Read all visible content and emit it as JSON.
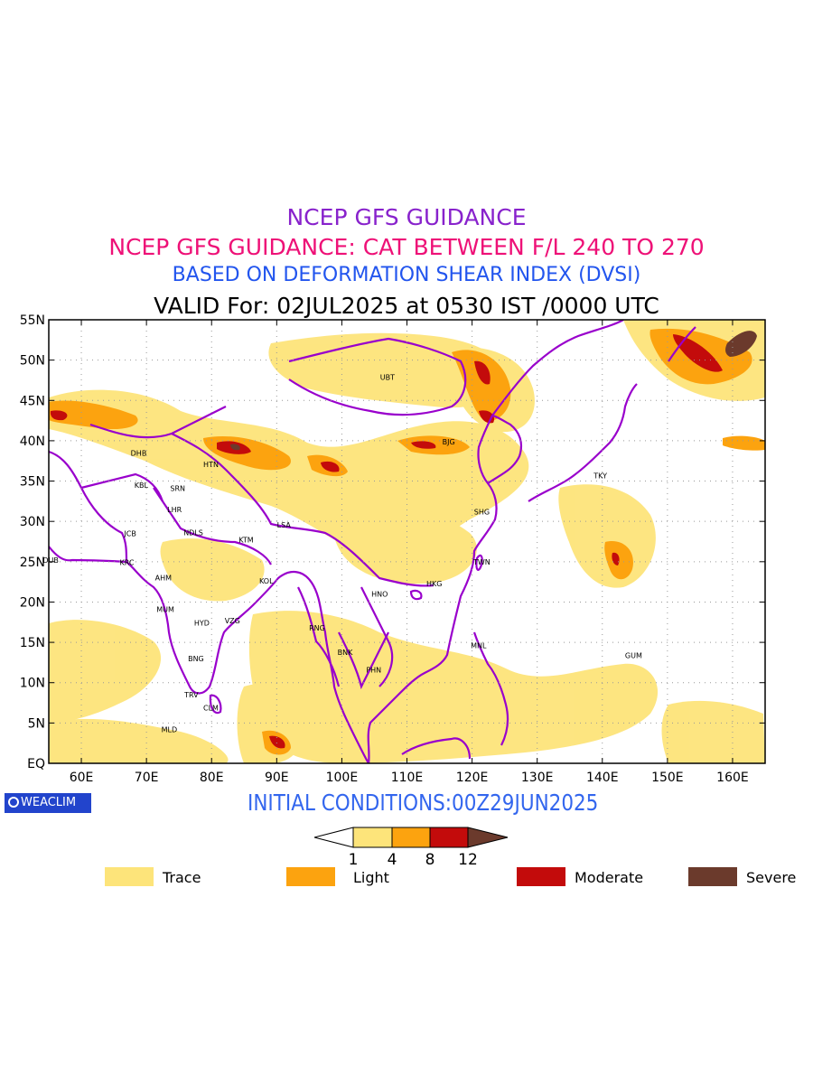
{
  "titles": {
    "line1": "NCEP GFS GUIDANCE",
    "line2": "NCEP GFS GUIDANCE: CAT BETWEEN F/L 240 TO 270",
    "line3": "BASED ON DEFORMATION SHEAR INDEX (DVSI)",
    "line4": "VALID For: 02JUL2025 at 0530 IST /0000 UTC"
  },
  "colors": {
    "line1": "#8822cc",
    "line2": "#ee1177",
    "line3": "#2255ee",
    "init": "#3366ee",
    "coast": "#9900cc",
    "trace": "#fde47a",
    "light": "#fca30f",
    "moderate": "#c30b0b",
    "severe": "#6b3a2c"
  },
  "map": {
    "lat_labels": [
      "55N",
      "50N",
      "45N",
      "40N",
      "35N",
      "30N",
      "25N",
      "20N",
      "15N",
      "10N",
      "5N",
      "EQ"
    ],
    "lon_labels": [
      "60E",
      "70E",
      "80E",
      "90E",
      "100E",
      "110E",
      "120E",
      "130E",
      "140E",
      "150E",
      "160E"
    ],
    "cities": [
      {
        "name": "UBT",
        "lon": 107,
        "lat": 47.9
      },
      {
        "name": "BJG",
        "lon": 116.4,
        "lat": 39.9
      },
      {
        "name": "DHB",
        "lon": 68.8,
        "lat": 38.5
      },
      {
        "name": "HTN",
        "lon": 79.9,
        "lat": 37.1
      },
      {
        "name": "KBL",
        "lon": 69.2,
        "lat": 34.5
      },
      {
        "name": "SRN",
        "lon": 74.8,
        "lat": 34.1
      },
      {
        "name": "LHR",
        "lon": 74.3,
        "lat": 31.5
      },
      {
        "name": "LSA",
        "lon": 91.1,
        "lat": 29.6
      },
      {
        "name": "SHG",
        "lon": 121.5,
        "lat": 31.2
      },
      {
        "name": "TKY",
        "lon": 139.7,
        "lat": 35.7
      },
      {
        "name": "JCB",
        "lon": 67.5,
        "lat": 28.5
      },
      {
        "name": "NDLS",
        "lon": 77.2,
        "lat": 28.6
      },
      {
        "name": "KTM",
        "lon": 85.3,
        "lat": 27.7
      },
      {
        "name": "DUB",
        "lon": 55.3,
        "lat": 25.2
      },
      {
        "name": "KRC",
        "lon": 67.0,
        "lat": 24.9
      },
      {
        "name": "TWN",
        "lon": 121.5,
        "lat": 25.0
      },
      {
        "name": "AHM",
        "lon": 72.6,
        "lat": 23.0
      },
      {
        "name": "KOL",
        "lon": 88.4,
        "lat": 22.6
      },
      {
        "name": "HKG",
        "lon": 114.2,
        "lat": 22.3
      },
      {
        "name": "HNO",
        "lon": 105.8,
        "lat": 21.0
      },
      {
        "name": "MUM",
        "lon": 72.9,
        "lat": 19.1
      },
      {
        "name": "HYD",
        "lon": 78.5,
        "lat": 17.4
      },
      {
        "name": "VZG",
        "lon": 83.2,
        "lat": 17.7
      },
      {
        "name": "RNG",
        "lon": 96.2,
        "lat": 16.8
      },
      {
        "name": "MNL",
        "lon": 121.0,
        "lat": 14.6
      },
      {
        "name": "BNK",
        "lon": 100.5,
        "lat": 13.8
      },
      {
        "name": "GUM",
        "lon": 144.8,
        "lat": 13.4
      },
      {
        "name": "PHN",
        "lon": 104.9,
        "lat": 11.6
      },
      {
        "name": "BNG",
        "lon": 77.6,
        "lat": 13.0
      },
      {
        "name": "TRV",
        "lon": 76.9,
        "lat": 8.5
      },
      {
        "name": "CLM",
        "lon": 79.9,
        "lat": 6.9
      },
      {
        "name": "MLD",
        "lon": 73.5,
        "lat": 4.2
      }
    ]
  },
  "colorbar": {
    "ticks": [
      "1",
      "4",
      "8",
      "12"
    ]
  },
  "legend": [
    {
      "label": "Trace",
      "color": "#fde47a"
    },
    {
      "label": "Light",
      "color": "#fca30f"
    },
    {
      "label": "Moderate",
      "color": "#c30b0b"
    },
    {
      "label": "Severe",
      "color": "#6b3a2c"
    }
  ],
  "init_text": "INITIAL CONDITIONS:00Z29JUN2025",
  "logo_text": "WEACLIM"
}
